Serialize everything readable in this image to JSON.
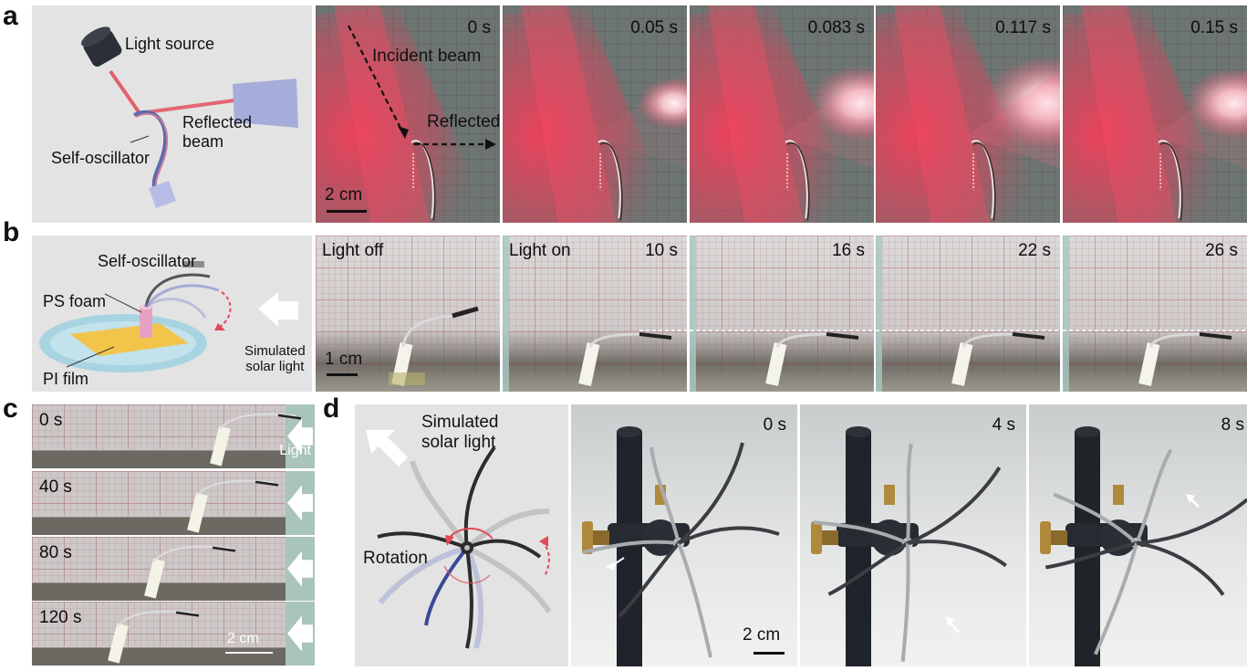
{
  "panels": {
    "a": {
      "label": "a",
      "schematic": {
        "light_source": "Light source",
        "reflected_beam": "Reflected\nbeam",
        "self_oscillator": "Self-oscillator"
      },
      "frames": [
        {
          "time": "0 s",
          "incident": "Incident beam",
          "reflected": "Reflected beam",
          "scale": "2 cm"
        },
        {
          "time": "0.05 s"
        },
        {
          "time": "0.083 s"
        },
        {
          "time": "0.117 s"
        },
        {
          "time": "0.15 s"
        }
      ]
    },
    "b": {
      "label": "b",
      "schematic": {
        "self_oscillator": "Self-oscillator",
        "ps_foam": "PS foam",
        "pi_film": "PI film",
        "simulated_solar_light": "Simulated\nsolar light"
      },
      "frames": [
        {
          "label": "Light off",
          "scale": "1 cm"
        },
        {
          "label": "Light on",
          "time": "10 s"
        },
        {
          "time": "16 s"
        },
        {
          "time": "22 s"
        },
        {
          "time": "26 s"
        }
      ]
    },
    "c": {
      "label": "c",
      "frames": [
        {
          "time": "0 s",
          "light": "Light"
        },
        {
          "time": "40 s"
        },
        {
          "time": "80 s"
        },
        {
          "time": "120 s",
          "scale": "2 cm"
        }
      ]
    },
    "d": {
      "label": "d",
      "schematic": {
        "simulated_solar_light": "Simulated\nsolar light",
        "rotation": "Rotation"
      },
      "frames": [
        {
          "time": "0 s",
          "scale": "2 cm"
        },
        {
          "time": "4 s"
        },
        {
          "time": "8 s"
        }
      ]
    }
  },
  "colors": {
    "background": "#ffffff",
    "panel_gray": "#e3e3e3",
    "laser_red": "#e83a4c",
    "grid_pink": "#c9a7b0",
    "dark_room": "#2a2e36"
  }
}
